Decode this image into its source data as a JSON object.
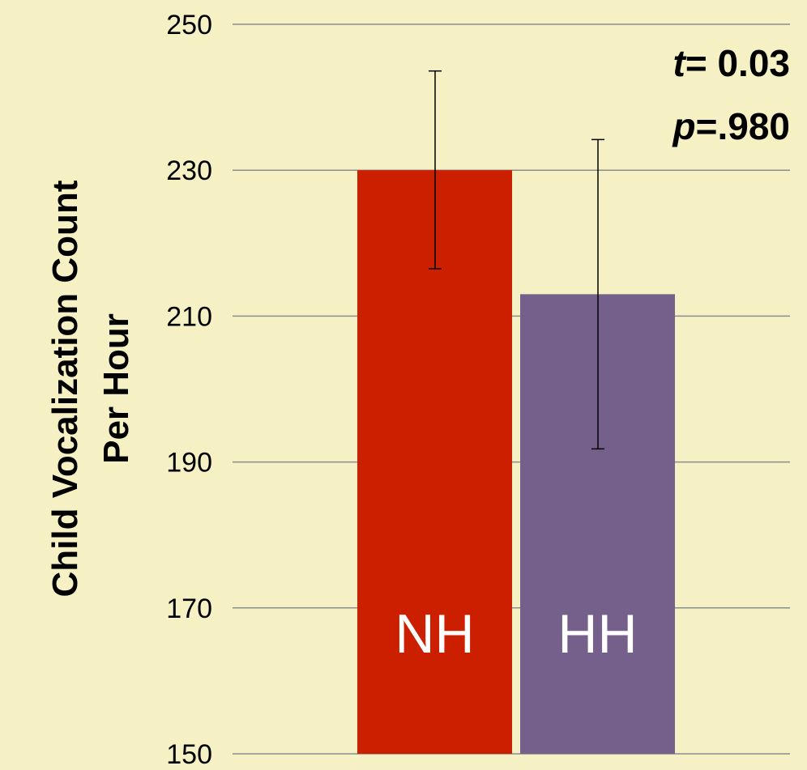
{
  "chart_data": {
    "type": "bar",
    "categories": [
      "NH",
      "HH"
    ],
    "values": [
      230,
      213
    ],
    "error_low": [
      216.5,
      191.8
    ],
    "error_high": [
      243.6,
      234.2
    ],
    "colors": [
      "#cc1f00",
      "#75608c"
    ],
    "ylabel_lines": [
      "Child Vocalization Count",
      "Per Hour"
    ],
    "ylim": [
      150,
      250
    ],
    "yticks": [
      150,
      170,
      190,
      210,
      230,
      250
    ],
    "grid": true,
    "annotation": {
      "t_symbol": "t",
      "t_value": "= 0.03",
      "p_symbol": "p",
      "p_value": "=.980"
    }
  }
}
